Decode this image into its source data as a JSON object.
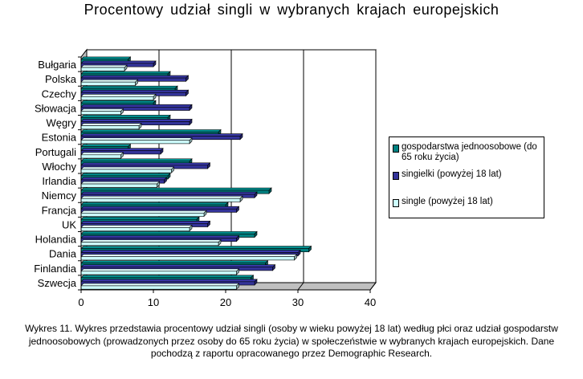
{
  "chart_data": {
    "type": "bar",
    "orientation": "horizontal",
    "style": "3d",
    "title": "Procentowy  udział  singli  w  wybranych  krajach  europejskich",
    "categories": [
      "Bułgaria",
      "Polska",
      "Czechy",
      "Słowacja",
      "Węgry",
      "Estonia",
      "Portugali",
      "Włochy",
      "Irlandia",
      "Niemcy",
      "Francja",
      "UK",
      "Holandia",
      "Dania",
      "Finlandia",
      "Szwecja"
    ],
    "series": [
      {
        "name": "gospodarstwa jednoosobowe (do 65 roku życia)",
        "color": "#008080",
        "values": [
          6.5,
          12,
          13,
          10,
          12,
          19,
          6.5,
          15,
          12,
          26,
          20,
          16,
          24,
          31.5,
          25.5,
          23.5
        ]
      },
      {
        "name": "singielki (powyżej 18 lat)",
        "color": "#333399",
        "values": [
          10,
          14.5,
          14.5,
          15,
          15,
          22,
          11,
          17.5,
          11.5,
          24,
          21.5,
          17.5,
          21.5,
          30,
          26.5,
          24
        ]
      },
      {
        "name": "single (powyżej 18 lat)",
        "color": "#CCFFFF",
        "values": [
          6,
          7.5,
          10,
          5.5,
          8,
          15,
          5.5,
          12.5,
          10.5,
          22,
          17,
          15,
          19,
          29.5,
          21.5,
          21.5
        ]
      }
    ],
    "xlim": [
      0,
      40
    ],
    "xticks": [
      "0",
      "10",
      "20",
      "30",
      "40"
    ],
    "grid": true,
    "legend_position": "right"
  },
  "caption": "Wykres 11. Wykres przedstawia  procentowy udział singli (osoby w wieku powyżej 18 lat) według płci oraz udział gospodarstw   jednoosobowych (prowadzonych przez osoby do 65 roku życia) w społeczeństwie w wybranych krajach  europejskich. Dane pochodzą z raportu opracowanego  przez Demographic  Research."
}
